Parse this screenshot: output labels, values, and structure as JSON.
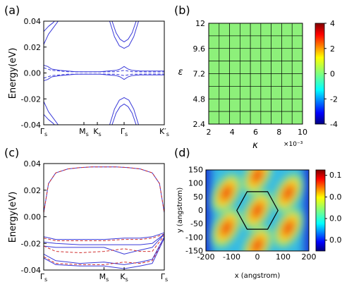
{
  "chart_data": [
    {
      "panel_label": "(a)",
      "type": "line",
      "ylabel": "Energy(eV)",
      "ylim": [
        -0.04,
        0.04
      ],
      "yticks": [
        "0.04",
        "0.02",
        "0.00",
        "-0.02",
        "-0.04"
      ],
      "xticks": [
        "Γs",
        "Ms",
        "Ks",
        "Γs",
        "K′s"
      ],
      "xtick_positions": [
        0,
        0.5,
        0.667,
        1.0,
        1.5
      ],
      "x_range": [
        0,
        1.5
      ],
      "series": [
        {
          "color": "#3a3ad9",
          "style": "solid",
          "x": [
            0,
            0.06,
            0.12,
            0.18,
            0.2
          ],
          "y": [
            0.022,
            0.03,
            0.035,
            0.04,
            0.042
          ]
        },
        {
          "color": "#3a3ad9",
          "style": "solid",
          "x": [
            0,
            0.06,
            0.12,
            0.16
          ],
          "y": [
            0.032,
            0.036,
            0.039,
            0.042
          ]
        },
        {
          "color": "#3a3ad9",
          "style": "solid",
          "x": [
            0.82,
            0.88,
            0.94,
            1.0,
            1.06,
            1.12,
            1.18
          ],
          "y": [
            0.04,
            0.028,
            0.021,
            0.019,
            0.021,
            0.028,
            0.04
          ]
        },
        {
          "color": "#3a3ad9",
          "style": "solid",
          "x": [
            0.85,
            0.9,
            0.95,
            1.0,
            1.05,
            1.1,
            1.15
          ],
          "y": [
            0.04,
            0.031,
            0.026,
            0.024,
            0.026,
            0.031,
            0.04
          ]
        },
        {
          "color": "#3a3ad9",
          "style": "solid",
          "x": [
            0,
            0.05,
            0.1,
            0.2,
            0.3,
            0.4,
            0.5,
            0.6,
            0.7,
            0.8,
            0.9,
            0.95,
            1.0,
            1.05,
            1.1,
            1.2,
            1.3,
            1.4,
            1.5
          ],
          "y": [
            0.006,
            0.005,
            0.003,
            0.002,
            0.0015,
            0.001,
            0.001,
            0.001,
            0.001,
            0.0015,
            0.002,
            0.003,
            0.005,
            0.003,
            0.002,
            0.0015,
            0.0015,
            0.0015,
            0.0015
          ]
        },
        {
          "color": "#3a3ad9",
          "style": "solid",
          "x": [
            0,
            0.05,
            0.1,
            0.2,
            0.3,
            0.4,
            0.5,
            0.6,
            0.7,
            0.8,
            0.9,
            0.95,
            1.0,
            1.05,
            1.1,
            1.2,
            1.3,
            1.4,
            1.5
          ],
          "y": [
            -0.006,
            -0.005,
            -0.003,
            -0.002,
            -0.0015,
            -0.001,
            -0.001,
            -0.001,
            -0.001,
            -0.0015,
            -0.002,
            -0.003,
            -0.005,
            -0.003,
            -0.002,
            -0.0015,
            -0.0015,
            -0.0015,
            -0.0015
          ]
        },
        {
          "color": "#3a3ad9",
          "style": "dashed",
          "x": [
            0,
            0.1,
            0.3,
            0.5,
            0.7,
            0.9,
            1.0,
            1.1,
            1.3,
            1.5
          ],
          "y": [
            0.004,
            0.002,
            0.001,
            0.0008,
            0.0008,
            0.001,
            0.002,
            0.001,
            0.0008,
            0.0008
          ]
        },
        {
          "color": "#3a3ad9",
          "style": "dashed",
          "x": [
            0,
            0.1,
            0.3,
            0.5,
            0.7,
            0.9,
            1.0,
            1.1,
            1.3,
            1.5
          ],
          "y": [
            -0.004,
            -0.002,
            -0.001,
            -0.0008,
            -0.0008,
            -0.001,
            -0.002,
            -0.001,
            -0.0008,
            -0.0008
          ]
        },
        {
          "color": "#3a3ad9",
          "style": "solid",
          "x": [
            0,
            0.06,
            0.12,
            0.18,
            0.2
          ],
          "y": [
            -0.022,
            -0.03,
            -0.035,
            -0.04,
            -0.042
          ]
        },
        {
          "color": "#3a3ad9",
          "style": "solid",
          "x": [
            0,
            0.06,
            0.12,
            0.16
          ],
          "y": [
            -0.032,
            -0.036,
            -0.039,
            -0.042
          ]
        },
        {
          "color": "#3a3ad9",
          "style": "solid",
          "x": [
            0.82,
            0.88,
            0.94,
            1.0,
            1.06,
            1.12,
            1.18
          ],
          "y": [
            -0.04,
            -0.028,
            -0.021,
            -0.019,
            -0.021,
            -0.028,
            -0.04
          ]
        },
        {
          "color": "#3a3ad9",
          "style": "solid",
          "x": [
            0.85,
            0.9,
            0.95,
            1.0,
            1.05,
            1.1,
            1.15
          ],
          "y": [
            -0.04,
            -0.031,
            -0.026,
            -0.024,
            -0.026,
            -0.031,
            -0.04
          ]
        }
      ]
    },
    {
      "panel_label": "(b)",
      "type": "heatmap",
      "xlabel": "κ",
      "ylabel": "ε",
      "x_multiplier": "×10⁻³",
      "xlim": [
        2,
        10
      ],
      "ylim": [
        2.4,
        12
      ],
      "xticks": [
        "2",
        "4",
        "6",
        "8",
        "10"
      ],
      "yticks": [
        "12",
        "9.6",
        "7.2",
        "4.8",
        "2.4"
      ],
      "grid_cols": 9,
      "grid_rows": 8,
      "value": 0,
      "cell_color": "#8df07a",
      "colorbar": {
        "ticks": [
          "4",
          "2",
          "0",
          "-2",
          "-4"
        ],
        "range": [
          -4,
          4
        ]
      }
    },
    {
      "panel_label": "(c)",
      "type": "line",
      "ylabel": "Energy(eV)",
      "ylim": [
        -0.04,
        0.04
      ],
      "yticks": [
        "0.04",
        "0.02",
        "0.00",
        "-0.02",
        "-0.04"
      ],
      "xticks": [
        "Γs",
        "Ms",
        "Ks",
        "Γs"
      ],
      "xtick_positions": [
        0,
        0.5,
        0.667,
        1.0
      ],
      "x_range": [
        0,
        1.0
      ],
      "series": [
        {
          "color": "#3a3ad9",
          "style": "solid",
          "x": [
            0,
            0.04,
            0.1,
            0.2,
            0.3,
            0.4,
            0.5,
            0.6,
            0.7,
            0.8,
            0.9,
            0.96,
            1.0
          ],
          "y": [
            0.003,
            0.025,
            0.033,
            0.036,
            0.037,
            0.0375,
            0.0375,
            0.0375,
            0.037,
            0.036,
            0.033,
            0.025,
            0.003
          ]
        },
        {
          "color": "#d03030",
          "style": "dashed",
          "x": [
            0,
            0.04,
            0.1,
            0.2,
            0.3,
            0.4,
            0.5,
            0.6,
            0.7,
            0.8,
            0.9,
            0.96,
            1.0
          ],
          "y": [
            0.003,
            0.025,
            0.033,
            0.036,
            0.037,
            0.0375,
            0.0375,
            0.0375,
            0.037,
            0.036,
            0.033,
            0.025,
            0.003
          ]
        },
        {
          "color": "#3a3ad9",
          "style": "solid",
          "x": [
            0,
            0.1,
            0.3,
            0.5,
            0.667,
            0.8,
            0.9,
            1.0
          ],
          "y": [
            -0.015,
            -0.017,
            -0.017,
            -0.017,
            -0.016,
            -0.016,
            -0.015,
            -0.012
          ]
        },
        {
          "color": "#d03030",
          "style": "dashed",
          "x": [
            0,
            0.1,
            0.3,
            0.5,
            0.667,
            0.8,
            0.9,
            1.0
          ],
          "y": [
            -0.016,
            -0.018,
            -0.018,
            -0.018,
            -0.017,
            -0.017,
            -0.016,
            -0.013
          ]
        },
        {
          "color": "#3a3ad9",
          "style": "solid",
          "x": [
            0,
            0.1,
            0.3,
            0.5,
            0.667,
            0.8,
            0.9,
            1.0
          ],
          "y": [
            -0.019,
            -0.02,
            -0.021,
            -0.021,
            -0.021,
            -0.021,
            -0.02,
            -0.013
          ]
        },
        {
          "color": "#3a3ad9",
          "style": "solid",
          "x": [
            0,
            0.1,
            0.3,
            0.5,
            0.667,
            0.8,
            0.9,
            1.0
          ],
          "y": [
            -0.022,
            -0.023,
            -0.023,
            -0.023,
            -0.028,
            -0.025,
            -0.023,
            -0.013
          ]
        },
        {
          "color": "#d03030",
          "style": "dashed",
          "x": [
            0,
            0.1,
            0.3,
            0.5,
            0.667,
            0.8,
            0.9,
            1.0
          ],
          "y": [
            -0.022,
            -0.026,
            -0.027,
            -0.026,
            -0.024,
            -0.026,
            -0.026,
            -0.014
          ]
        },
        {
          "color": "#3a3ad9",
          "style": "solid",
          "x": [
            0,
            0.1,
            0.3,
            0.5,
            0.667,
            0.8,
            0.9,
            1.0
          ],
          "y": [
            -0.028,
            -0.033,
            -0.035,
            -0.034,
            -0.036,
            -0.034,
            -0.032,
            -0.015
          ]
        },
        {
          "color": "#d03030",
          "style": "dashed",
          "x": [
            0,
            0.1,
            0.3,
            0.5,
            0.667,
            0.8,
            0.9,
            1.0
          ],
          "y": [
            -0.03,
            -0.035,
            -0.036,
            -0.036,
            -0.034,
            -0.035,
            -0.033,
            -0.016
          ]
        },
        {
          "color": "#3a3ad9",
          "style": "solid",
          "x": [
            0,
            0.1,
            0.3,
            0.5,
            0.667,
            0.8,
            0.9,
            1.0
          ],
          "y": [
            -0.031,
            -0.036,
            -0.037,
            -0.037,
            -0.039,
            -0.037,
            -0.035,
            -0.016
          ]
        }
      ]
    },
    {
      "panel_label": "(d)",
      "type": "heatmap",
      "xlabel": "x (angstrom)",
      "ylabel": "y (angstrom)",
      "xlim": [
        -200,
        200
      ],
      "ylim": [
        -150,
        150
      ],
      "xticks": [
        "-200",
        "-100",
        "0",
        "100",
        "200"
      ],
      "yticks": [
        "150",
        "100",
        "50",
        "0",
        "-50",
        "-100",
        "-150"
      ],
      "colorbar": {
        "ticks": [
          "0.1",
          "0.08",
          "0.06",
          "0.04"
        ],
        "range": [
          0.03,
          0.105
        ]
      },
      "peaks": [
        {
          "x": -120,
          "y": 65
        },
        {
          "x": -120,
          "y": -65
        },
        {
          "x": 0,
          "y": 0
        },
        {
          "x": 0,
          "y": 130
        },
        {
          "x": 0,
          "y": -130
        },
        {
          "x": 120,
          "y": 65
        },
        {
          "x": 120,
          "y": -65
        }
      ],
      "hexagon_radius": 80
    }
  ]
}
